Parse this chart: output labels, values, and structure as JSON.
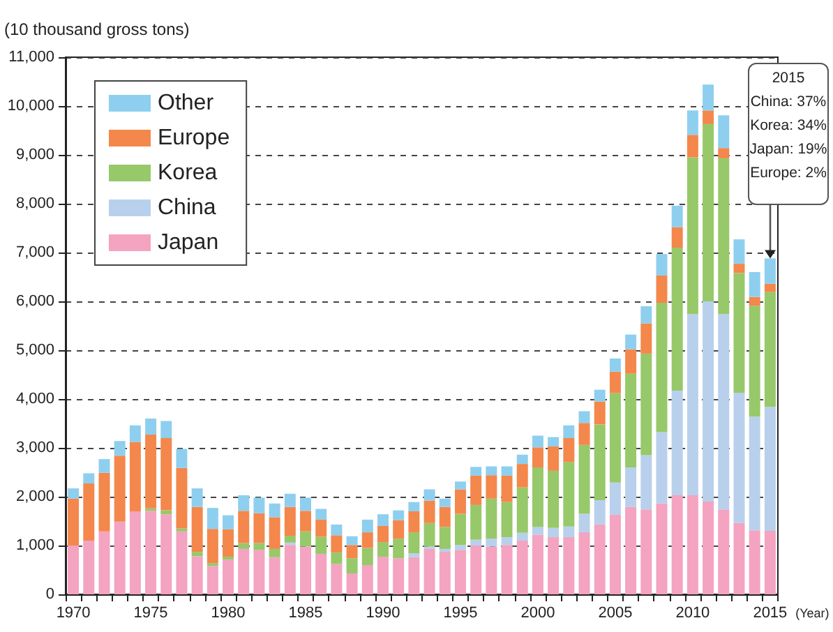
{
  "chart_data": {
    "type": "bar",
    "stacked": true,
    "ylabel": "(10 thousand gross tons)",
    "xlabel": "(Year)",
    "categories": [
      "1970",
      null,
      null,
      null,
      null,
      "1975",
      null,
      null,
      null,
      null,
      "1980",
      null,
      null,
      null,
      null,
      "1985",
      null,
      null,
      null,
      null,
      "1990",
      null,
      null,
      null,
      null,
      "1995",
      null,
      null,
      null,
      null,
      "2000",
      null,
      null,
      null,
      null,
      "2005",
      null,
      null,
      null,
      null,
      "2010",
      null,
      null,
      null,
      null,
      "2015"
    ],
    "series": [
      {
        "name": "Japan",
        "color": "#f4a3c0",
        "values": [
          1000,
          1100,
          1290,
          1490,
          1700,
          1710,
          1640,
          1290,
          780,
          580,
          710,
          930,
          910,
          760,
          1010,
          980,
          830,
          620,
          430,
          600,
          770,
          740,
          760,
          930,
          870,
          910,
          1000,
          980,
          1010,
          1100,
          1220,
          1170,
          1170,
          1270,
          1430,
          1630,
          1790,
          1740,
          1860,
          2030,
          2030,
          1900,
          1740,
          1460,
          1310,
          1300
        ]
      },
      {
        "name": "China",
        "color": "#b8d0ec",
        "values": [
          0,
          0,
          0,
          0,
          null,
          0,
          null,
          0,
          0,
          0,
          0,
          0,
          0,
          0,
          50,
          0,
          null,
          null,
          0,
          0,
          0,
          0,
          80,
          50,
          60,
          100,
          120,
          160,
          160,
          160,
          160,
          190,
          220,
          380,
          500,
          660,
          810,
          1110,
          1460,
          2140,
          3710,
          4100,
          4000,
          2670,
          2330,
          2540
        ]
      },
      {
        "name": "Korea",
        "color": "#97c86a",
        "values": [
          0,
          0,
          0,
          0,
          0,
          50,
          80,
          60,
          90,
          60,
          60,
          120,
          140,
          170,
          140,
          310,
          350,
          240,
          310,
          350,
          300,
          400,
          430,
          480,
          450,
          640,
          710,
          820,
          720,
          930,
          1220,
          1170,
          1320,
          1410,
          1550,
          1830,
          1920,
          2080,
          2650,
          2930,
          3210,
          3630,
          3190,
          2450,
          2270,
          2350
        ]
      },
      {
        "name": "Europe",
        "color": "#f4874b",
        "values": [
          960,
          1170,
          1200,
          1350,
          1420,
          1510,
          1480,
          1240,
          920,
          700,
          560,
          660,
          610,
          650,
          590,
          420,
          350,
          350,
          270,
          320,
          330,
          380,
          430,
          460,
          410,
          500,
          600,
          480,
          540,
          480,
          410,
          500,
          490,
          450,
          470,
          440,
          500,
          620,
          560,
          420,
          460,
          280,
          210,
          190,
          180,
          170
        ]
      },
      {
        "name": "Other",
        "color": "#8ecfef",
        "values": [
          210,
          210,
          280,
          300,
          340,
          330,
          350,
          390,
          380,
          430,
          290,
          320,
          320,
          280,
          270,
          270,
          220,
          220,
          180,
          260,
          240,
          200,
          190,
          230,
          170,
          160,
          180,
          180,
          190,
          190,
          240,
          190,
          260,
          240,
          240,
          270,
          300,
          350,
          440,
          440,
          500,
          530,
          670,
          500,
          510,
          520
        ]
      }
    ],
    "ylim": [
      0,
      11000
    ],
    "yticks": [
      0,
      {
        "value": 1000,
        "label": "1,000"
      },
      {
        "value": 2000,
        "label": "2,000"
      },
      {
        "value": 3000,
        "label": "3,000"
      },
      {
        "value": 4000,
        "label": "4,000"
      },
      {
        "value": 5000,
        "label": "5,000"
      },
      {
        "value": 6000,
        "label": "6,000"
      },
      {
        "value": 7000,
        "label": "7,000"
      },
      {
        "value": 8000,
        "label": "8,000"
      },
      {
        "value": 9000,
        "label": "9,000"
      },
      {
        "value": 10000,
        "label": "10,000"
      },
      {
        "value": 11000,
        "label": "11,000"
      }
    ],
    "grid": "y",
    "legend": "top left",
    "annotations": [
      "2015\nChina: 37%\nKorea: 34%\nJapan: 19%\nEurope: 2%"
    ]
  }
}
